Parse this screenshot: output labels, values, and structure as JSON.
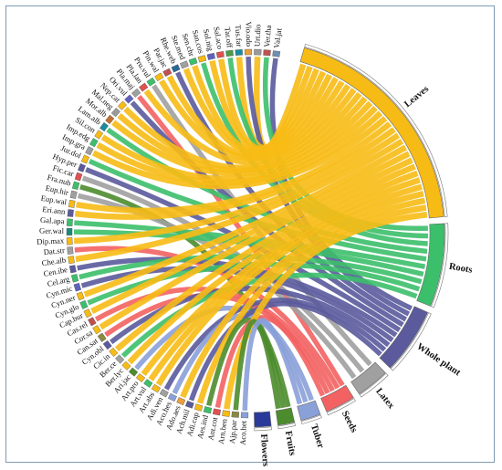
{
  "diagram": {
    "type": "chord",
    "parts": [
      {
        "id": "leaves",
        "label": "Leaves",
        "color": "#f7bb15"
      },
      {
        "id": "roots",
        "label": "Roots",
        "color": "#3cbf6a"
      },
      {
        "id": "whole",
        "label": "Whole plant",
        "color": "#5a5a9c"
      },
      {
        "id": "latex",
        "label": "Latex",
        "color": "#a0a0a0"
      },
      {
        "id": "seeds",
        "label": "Seeds",
        "color": "#f36262"
      },
      {
        "id": "tuber",
        "label": "Tuber",
        "color": "#8aa0d8"
      },
      {
        "id": "fruits",
        "label": "Fruits",
        "color": "#4c8c2c"
      },
      {
        "id": "flowers",
        "label": "Flowers",
        "color": "#2a3a9a"
      }
    ],
    "plants": [
      {
        "label": "Val.jat",
        "color": "#6c90b0",
        "part": "whole"
      },
      {
        "label": "Ver.tha",
        "color": "#c05050",
        "part": "roots"
      },
      {
        "label": "Urt.dio",
        "color": "#9a9a9a",
        "part": "leaves"
      },
      {
        "label": "Vio.odo",
        "color": "#e9a03b",
        "part": "whole"
      },
      {
        "label": "Tus.far",
        "color": "#1a8aa0",
        "part": "leaves"
      },
      {
        "label": "Tar.off",
        "color": "#4a9a4a",
        "part": "roots"
      },
      {
        "label": "Sal.aco",
        "color": "#e05050",
        "part": "leaves"
      },
      {
        "label": "Sol.nig",
        "color": "#6060c0",
        "part": "leaves"
      },
      {
        "label": "San.cos",
        "color": "#f7bb15",
        "part": "roots"
      },
      {
        "label": "Sen.chr",
        "color": "#3cbf6a",
        "part": "leaves"
      },
      {
        "label": "Ste.med",
        "color": "#a0a0a0",
        "part": "leaves"
      },
      {
        "label": "Rhe.web",
        "color": "#2a6a9a",
        "part": "whole"
      },
      {
        "label": "Par.jac",
        "color": "#c05050",
        "part": "leaves"
      },
      {
        "label": "Pin.wal",
        "color": "#f7bb15",
        "part": "leaves"
      },
      {
        "label": "Pru.vul",
        "color": "#3cbf6a",
        "part": "latex"
      },
      {
        "label": "Pla.lan",
        "color": "#e05050",
        "part": "leaves"
      },
      {
        "label": "Pla.maj",
        "color": "#a0a0a0",
        "part": "seeds"
      },
      {
        "label": "Ori.vul",
        "color": "#6060c0",
        "part": "whole"
      },
      {
        "label": "Nep.cat",
        "color": "#f7bb15",
        "part": "leaves"
      },
      {
        "label": "Mal.neg",
        "color": "#9a9a9a",
        "part": "leaves"
      },
      {
        "label": "Mor.alb",
        "color": "#c07030",
        "part": "leaves"
      },
      {
        "label": "Lam.alb",
        "color": "#1a8aa0",
        "part": "roots"
      },
      {
        "label": "Sil.con",
        "color": "#f7bb15",
        "part": "leaves"
      },
      {
        "label": "Imp.edg",
        "color": "#3cbf6a",
        "part": "leaves"
      },
      {
        "label": "Imp.gra",
        "color": "#a0a0a0",
        "part": "leaves"
      },
      {
        "label": "Jur.dol",
        "color": "#f7bb15",
        "part": "roots"
      },
      {
        "label": "Hyp.per",
        "color": "#5a5a9c",
        "part": "whole"
      },
      {
        "label": "Fic.car",
        "color": "#e05050",
        "part": "latex"
      },
      {
        "label": "Fra.nub",
        "color": "#3cbf6a",
        "part": "fruits"
      },
      {
        "label": "Eup.hir",
        "color": "#a0a0a0",
        "part": "latex"
      },
      {
        "label": "Eup.wal",
        "color": "#f7bb15",
        "part": "leaves"
      },
      {
        "label": "Eri.ann",
        "color": "#5a5a9c",
        "part": "leaves"
      },
      {
        "label": "Gal.apa",
        "color": "#3cbf6a",
        "part": "roots"
      },
      {
        "label": "Ger.wal",
        "color": "#1a8a7a",
        "part": "roots"
      },
      {
        "label": "Dip.max",
        "color": "#f7bb15",
        "part": "leaves"
      },
      {
        "label": "Dat.str",
        "color": "#a0a0a0",
        "part": "seeds"
      },
      {
        "label": "Che.alb",
        "color": "#f7bb15",
        "part": "leaves"
      },
      {
        "label": "Cen.ibe",
        "color": "#5a5a9c",
        "part": "whole"
      },
      {
        "label": "Cel.arg",
        "color": "#3cbf6a",
        "part": "roots"
      },
      {
        "label": "Cyn.mic",
        "color": "#6060c0",
        "part": "whole"
      },
      {
        "label": "Cyn.ner",
        "color": "#f7bb15",
        "part": "leaves"
      },
      {
        "label": "Cyn.glo",
        "color": "#3cbf6a",
        "part": "roots"
      },
      {
        "label": "Cap.bur",
        "color": "#f7bb15",
        "part": "leaves"
      },
      {
        "label": "Cas.rel",
        "color": "#c05050",
        "part": "seeds"
      },
      {
        "label": "Cor.sa",
        "color": "#f7bb15",
        "part": "leaves"
      },
      {
        "label": "Can.sat",
        "color": "#8a8a40",
        "part": "seeds"
      },
      {
        "label": "Cyn.obl",
        "color": "#5a5a9c",
        "part": "whole"
      },
      {
        "label": "Cic.in",
        "color": "#f7bb15",
        "part": "leaves"
      },
      {
        "label": "Ber.ce",
        "color": "#a0a0a0",
        "part": "roots"
      },
      {
        "label": "Ber.lyc",
        "color": "#f7bb15",
        "part": "leaves"
      },
      {
        "label": "Ari.jac",
        "color": "#4c8c2c",
        "part": "tuber"
      },
      {
        "label": "Art.pro",
        "color": "#f7bb15",
        "part": "leaves"
      },
      {
        "label": "Art.vul",
        "color": "#3cbf6a",
        "part": "leaves"
      },
      {
        "label": "Art.abs",
        "color": "#f7bb15",
        "part": "leaves"
      },
      {
        "label": "Adi.ven",
        "color": "#a0a0a0",
        "part": "whole"
      },
      {
        "label": "Aco.hes",
        "color": "#8aa0d8",
        "part": "tuber"
      },
      {
        "label": "Ado.aes",
        "color": "#e9a03b",
        "part": "leaves"
      },
      {
        "label": "Ach.mil",
        "color": "#5a5a9c",
        "part": "whole"
      },
      {
        "label": "Adi.cap",
        "color": "#f7bb15",
        "part": "leaves"
      },
      {
        "label": "Aes.ind",
        "color": "#3cbf6a",
        "part": "fruits"
      },
      {
        "label": "Ant.cot",
        "color": "#e05050",
        "part": "seeds"
      },
      {
        "label": "Arn.ben",
        "color": "#f7bb15",
        "part": "leaves"
      },
      {
        "label": "Ajp.par",
        "color": "#8a8a40",
        "part": "fruits"
      },
      {
        "label": "Aco.het",
        "color": "#8aa0d8",
        "part": "tuber"
      }
    ]
  }
}
